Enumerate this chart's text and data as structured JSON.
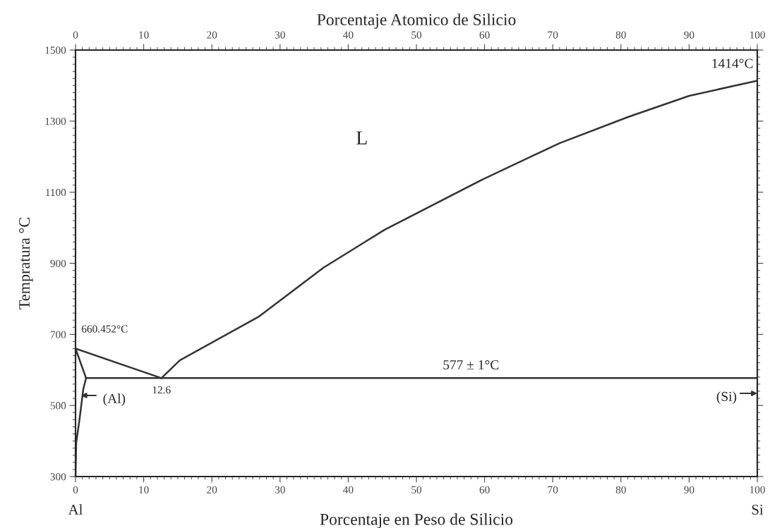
{
  "chart_data": {
    "type": "line",
    "xlabel": "Porcentaje en Peso de Silicio",
    "ylabel": "Tempratura °C",
    "x2label": "Porcentaje Atomico de Silicio",
    "xlim": [
      0,
      100
    ],
    "xticks": [
      0,
      10,
      20,
      30,
      40,
      50,
      60,
      70,
      80,
      90,
      100
    ],
    "x2lim": [
      0,
      100
    ],
    "x2ticks": [
      0,
      10,
      20,
      30,
      40,
      50,
      60,
      70,
      80,
      90,
      100
    ],
    "ylim": [
      300,
      1500
    ],
    "yticks": [
      300,
      500,
      700,
      900,
      1100,
      1300,
      1500
    ],
    "grid": false,
    "legend": false,
    "marker": "none",
    "line_style": "solid",
    "tick_labels": "xy",
    "series": [
      {
        "color": "#333333",
        "x": [
          0,
          12.6
        ],
        "values": [
          660,
          577
        ]
      },
      {
        "color": "#333333",
        "x": [
          12.6,
          15.3,
          26.8,
          36.4,
          45.3,
          59.6,
          71.0,
          81.1,
          90.0,
          100
        ],
        "values": [
          577,
          627,
          749,
          888,
          994,
          1135,
          1238,
          1312,
          1371,
          1414
        ]
      },
      {
        "color": "#333333",
        "x": [
          1.55,
          100
        ],
        "values": [
          577,
          577
        ]
      },
      {
        "color": "#333333",
        "x": [
          0,
          1.55
        ],
        "values": [
          660,
          577
        ]
      },
      {
        "color": "#333333",
        "x": [
          1.55,
          1.14,
          0.6,
          0.1,
          0
        ],
        "values": [
          577,
          546,
          463,
          395,
          300
        ]
      }
    ],
    "annotations": [
      {
        "text": "660.452°C",
        "x": 0,
        "y": 660.452
      },
      {
        "text": "12.6",
        "x": 12.6,
        "y": 577
      },
      {
        "text": "1414°C",
        "x": 100,
        "y": 1414
      },
      {
        "text": "577 ± 1°C",
        "x": 58,
        "y": 577
      },
      "L",
      "(Al)",
      "(Si)",
      "Al",
      "Si"
    ]
  }
}
